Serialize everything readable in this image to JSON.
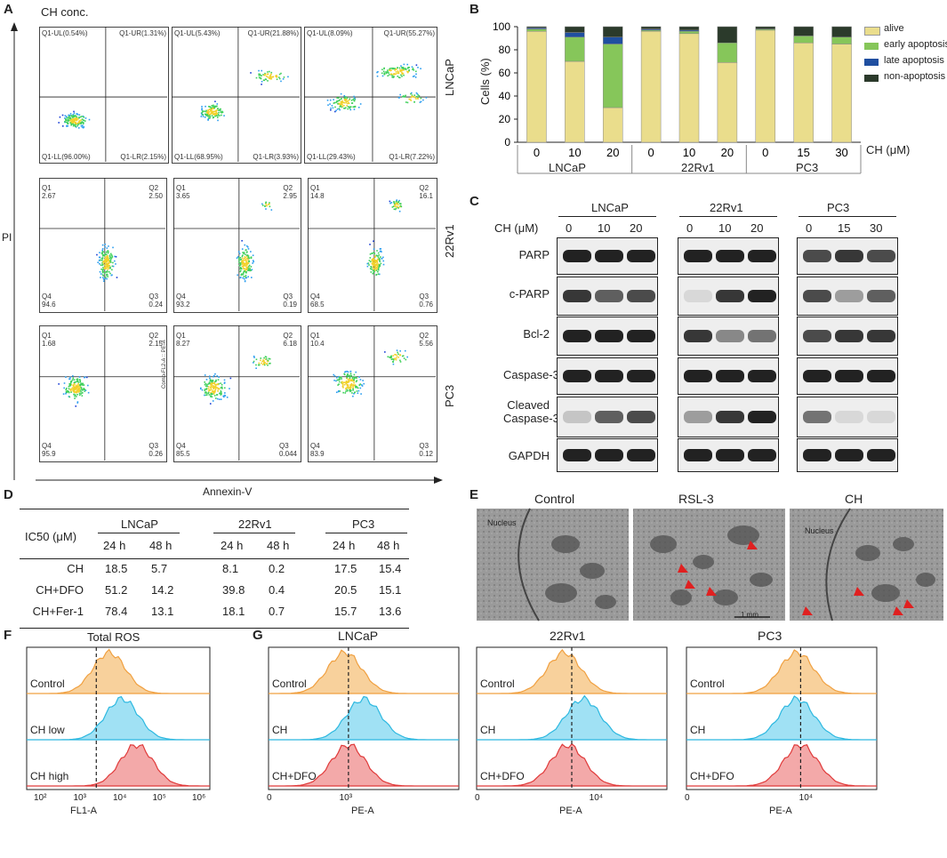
{
  "panel_labels": {
    "a": "A",
    "b": "B",
    "c": "C",
    "d": "D",
    "e": "E",
    "f": "F",
    "g": "G"
  },
  "panel_a": {
    "top_label": "CH conc.",
    "y_axis": "PI",
    "x_axis": "Annexin-V",
    "row_labels": [
      "LNCaP",
      "22Rv1",
      "PC3"
    ],
    "lncap_plots": [
      {
        "ul": "Q1-UL(0.54%)",
        "ur": "Q1-UR(1.31%)",
        "ll": "Q1-LL(96.00%)",
        "lr": "Q1-LR(2.15%)"
      },
      {
        "ul": "Q1-UL(5.43%)",
        "ur": "Q1-UR(21.88%)",
        "ll": "Q1-LL(68.95%)",
        "lr": "Q1-LR(3.93%)"
      },
      {
        "ul": "Q1-UL(8.09%)",
        "ur": "Q1-UR(55.27%)",
        "ll": "Q1-LL(29.43%)",
        "lr": "Q1-LR(7.22%)"
      }
    ],
    "rv1_plots": [
      {
        "q1": "Q1\n2.67",
        "q2": "Q2\n2.50",
        "q4": "Q4\n94.6",
        "q3": "Q3\n0.24"
      },
      {
        "q1": "Q1\n3.65",
        "q2": "Q2\n2.95",
        "q4": "Q4\n93.2",
        "q3": "Q3\n0.19"
      },
      {
        "q1": "Q1\n14.8",
        "q2": "Q2\n16.1",
        "q4": "Q4\n68.5",
        "q3": "Q3\n0.76"
      }
    ],
    "pc3_plots": [
      {
        "q1": "Q1\n1.68",
        "q2": "Q2\n2.15",
        "q4": "Q4\n95.9",
        "q3": "Q3\n0.26"
      },
      {
        "q1": "Q1\n8.27",
        "q2": "Q2\n6.18",
        "q4": "Q4\n85.5",
        "q3": "Q3\n0.044"
      },
      {
        "q1": "Q1\n10.4",
        "q2": "Q2\n5.56",
        "q4": "Q4\n83.9",
        "q3": "Q3\n0.12"
      }
    ],
    "pc3_mid_axis": "Comp-FL2-A :: PE-A"
  },
  "panel_c": {
    "groups": [
      "LNCaP",
      "22Rv1",
      "PC3"
    ],
    "ch_label": "CH (μM)",
    "doses": [
      [
        "0",
        "10",
        "20"
      ],
      [
        "0",
        "10",
        "20"
      ],
      [
        "0",
        "15",
        "30"
      ]
    ],
    "rows": [
      "PARP",
      "c-PARP",
      "Bcl-2",
      "Caspase-3",
      "Cleaved\nCaspase-3",
      "GAPDH"
    ]
  },
  "panel_d": {
    "ic50_label": "IC50 (μM)",
    "groups": [
      "LNCaP",
      "22Rv1",
      "PC3"
    ],
    "times": [
      "24 h",
      "48 h"
    ],
    "rows": [
      {
        "name": "CH",
        "values": [
          "18.5",
          "5.7",
          "8.1",
          "0.2",
          "17.5",
          "15.4"
        ]
      },
      {
        "name": "CH+DFO",
        "values": [
          "51.2",
          "14.2",
          "39.8",
          "0.4",
          "20.5",
          "15.1"
        ]
      },
      {
        "name": "CH+Fer-1",
        "values": [
          "78.4",
          "13.1",
          "18.1",
          "0.7",
          "15.7",
          "13.6"
        ]
      }
    ]
  },
  "panel_e": {
    "titles": [
      "Control",
      "RSL-3",
      "CH"
    ],
    "nucleus": "Nucleus",
    "scale_bar": "1 mm"
  },
  "panel_f": {
    "title": "Total ROS",
    "conditions": [
      "Control",
      "CH low",
      "CH high"
    ],
    "x_axis": "FL1-A",
    "ticks": [
      "10²",
      "10³",
      "10⁴",
      "10⁵",
      "10⁶"
    ]
  },
  "panel_g": {
    "titles": [
      "LNCaP",
      "22Rv1",
      "PC3"
    ],
    "conditions": [
      "Control",
      "CH",
      "CH+DFO"
    ],
    "x_axis": "PE-A",
    "ticks": [
      [
        "0",
        "10³"
      ],
      [
        "0",
        "10⁴"
      ],
      [
        "0",
        "10⁴"
      ]
    ]
  },
  "chart_data": [
    {
      "type": "bar",
      "stacked": true,
      "title": "",
      "ylabel": "Cells (%)",
      "xlabel": "CH (μM)",
      "ylim": [
        0,
        100
      ],
      "yticks": [
        "0",
        "20",
        "40",
        "60",
        "80",
        "100"
      ],
      "categories": [
        "0",
        "10",
        "20",
        "0",
        "10",
        "20",
        "0",
        "15",
        "30"
      ],
      "groups": [
        "LNCaP",
        "22Rv1",
        "PC3"
      ],
      "series": [
        {
          "name": "alive",
          "color": "#eadd8c",
          "values": [
            96,
            70,
            30,
            96,
            94,
            69,
            97,
            86,
            85
          ]
        },
        {
          "name": "early apoptosis",
          "color": "#86c65a",
          "values": [
            2,
            21,
            55,
            1,
            2,
            17,
            1,
            6,
            6
          ]
        },
        {
          "name": "late apoptosis",
          "color": "#1f4fa0",
          "values": [
            1,
            4,
            6,
            1,
            1,
            0,
            0,
            0,
            0
          ]
        },
        {
          "name": "non-apoptosis",
          "color": "#2b3a2b",
          "values": [
            1,
            5,
            9,
            2,
            3,
            14,
            2,
            8,
            9
          ]
        }
      ]
    }
  ]
}
